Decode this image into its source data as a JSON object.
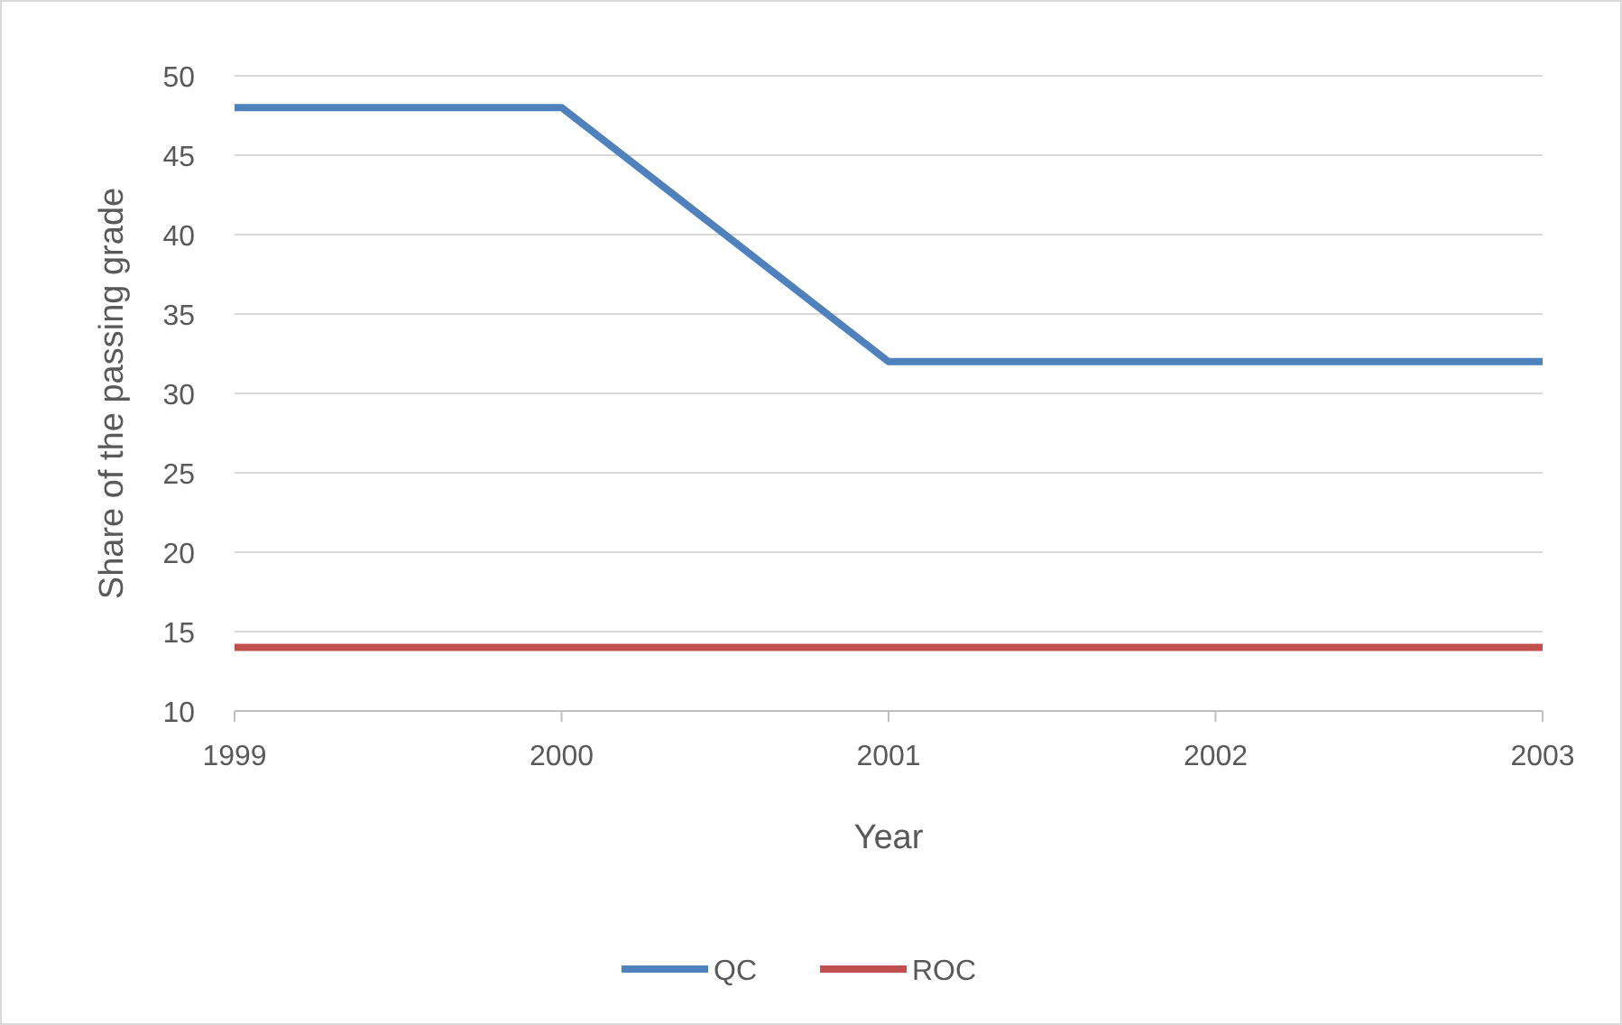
{
  "chart_data": {
    "type": "line",
    "xlabel": "Year",
    "ylabel": "Share of the passing grade",
    "x": [
      1999,
      2000,
      2001,
      2002,
      2003
    ],
    "series": [
      {
        "name": "QC",
        "color": "#4f81bd",
        "values": [
          48,
          48,
          32,
          32,
          32
        ]
      },
      {
        "name": "ROC",
        "color": "#c0504d",
        "values": [
          14,
          14,
          14,
          14,
          14
        ]
      }
    ],
    "xlim": [
      1999,
      2003
    ],
    "xticks": [
      1999,
      2000,
      2001,
      2002,
      2003
    ],
    "ylim": [
      10,
      50
    ],
    "yticks": [
      10,
      15,
      20,
      25,
      30,
      35,
      40,
      45,
      50
    ],
    "grid": "y",
    "legend": "bottom",
    "marker": "none",
    "line_style": "solid"
  }
}
